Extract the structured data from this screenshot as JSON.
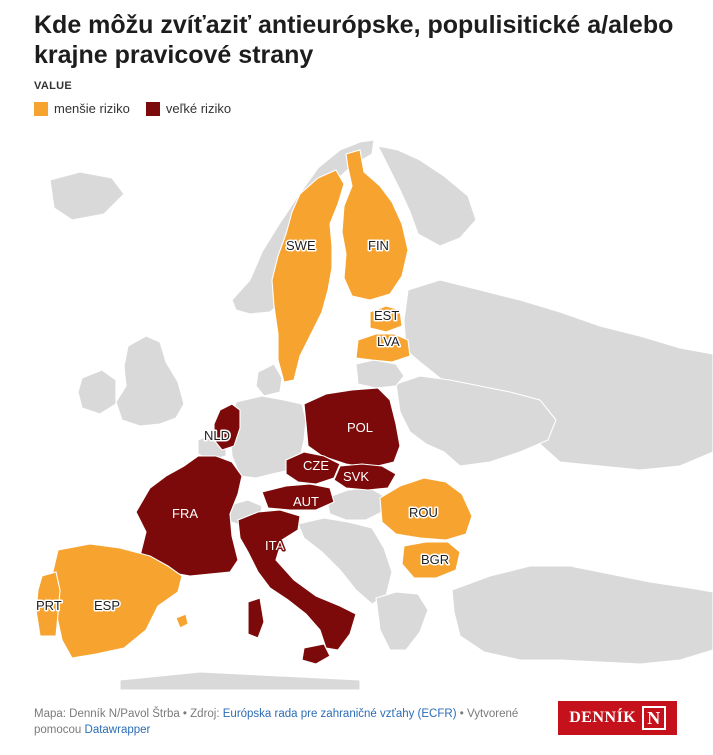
{
  "title": "Kde môžu zvíťaziť antieurópske, populisitické a/alebo krajne pravicové strany",
  "legend": {
    "heading": "VALUE",
    "items": [
      {
        "label": "menšie riziko",
        "color": "#f6a330"
      },
      {
        "label": "veľké riziko",
        "color": "#7d0a0a"
      }
    ]
  },
  "map": {
    "risk_colors": {
      "small": "#f6a330",
      "big": "#7d0a0a",
      "none": "#d9d9d9"
    },
    "country_labels": {
      "SWE": "SWE",
      "FIN": "FIN",
      "EST": "EST",
      "LVA": "LVA",
      "NLD": "NLD",
      "POL": "POL",
      "CZE": "CZE",
      "SVK": "SVK",
      "AUT": "AUT",
      "FRA": "FRA",
      "ROU": "ROU",
      "ITA": "ITA",
      "BGR": "BGR",
      "PRT": "PRT",
      "ESP": "ESP"
    },
    "risk": {
      "small": [
        "SWE",
        "FIN",
        "EST",
        "LVA",
        "ROU",
        "BGR",
        "PRT",
        "ESP"
      ],
      "big": [
        "NLD",
        "POL",
        "CZE",
        "SVK",
        "AUT",
        "FRA",
        "ITA"
      ]
    }
  },
  "footer": {
    "prefix": "Mapa: Denník N/Pavol Štrba • Zdroj: ",
    "source_link": "Európska rada pre zahraničné vzťahy (ECFR)",
    "middle": " • Vytvorené pomocou ",
    "tool_link": "Datawrapper"
  },
  "logo": {
    "text": "DENNÍK",
    "mark": "N"
  }
}
